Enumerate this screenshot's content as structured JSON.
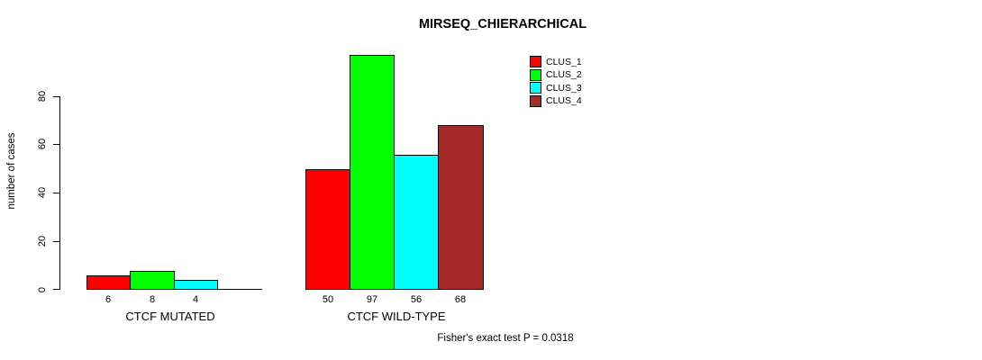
{
  "chart_data": {
    "type": "bar",
    "title": "MIRSEQ_CHIERARCHICAL",
    "xlabel": "",
    "ylabel": "number of cases",
    "ylim": [
      0,
      80
    ],
    "yticks": [
      0,
      20,
      40,
      60,
      80
    ],
    "grid": false,
    "legend_position": "top-right",
    "annotation": "Fisher's exact test P = 0.0318",
    "categories": [
      "CTCF MUTATED",
      "CTCF WILD-TYPE"
    ],
    "series": [
      {
        "name": "CLUS_1",
        "color": "#FF0000",
        "values": [
          6,
          50
        ]
      },
      {
        "name": "CLUS_2",
        "color": "#00FF00",
        "values": [
          8,
          97
        ]
      },
      {
        "name": "CLUS_3",
        "color": "#00FFFF",
        "values": [
          4,
          56
        ]
      },
      {
        "name": "CLUS_4",
        "color": "#A52A2A",
        "values": [
          0,
          68
        ]
      }
    ],
    "bar_value_labels": [
      [
        "6",
        "8",
        "4",
        ""
      ],
      [
        "50",
        "97",
        "56",
        "68"
      ]
    ]
  }
}
